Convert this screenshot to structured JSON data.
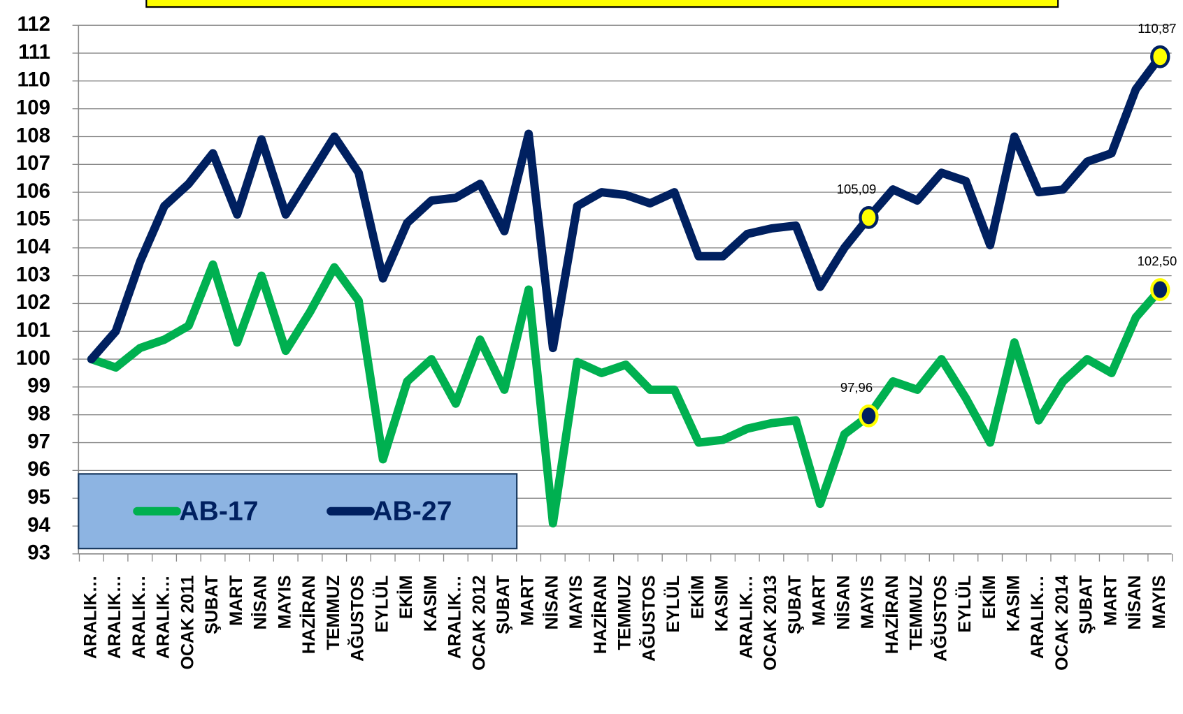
{
  "chart_data": {
    "type": "line",
    "categories": [
      "ARALIK…",
      "ARALIK…",
      "ARALIK…",
      "ARALIK…",
      "OCAK 2011",
      "ŞUBAT",
      "MART",
      "NİSAN",
      "MAYIS",
      "HAZİRAN",
      "TEMMUZ",
      "AĞUSTOS",
      "EYLÜL",
      "EKİM",
      "KASIM",
      "ARALIK…",
      "OCAK 2012",
      "ŞUBAT",
      "MART",
      "NİSAN",
      "MAYIS",
      "HAZİRAN",
      "TEMMUZ",
      "AĞUSTOS",
      "EYLÜL",
      "EKİM",
      "KASIM",
      "ARALIK…",
      "OCAK 2013",
      "ŞUBAT",
      "MART",
      "NİSAN",
      "MAYIS",
      "HAZİRAN",
      "TEMMUZ",
      "AĞUSTOS",
      "EYLÜL",
      "EKİM",
      "KASIM",
      "ARALIK…",
      "OCAK 2014",
      "ŞUBAT",
      "MART",
      "NİSAN",
      "MAYIS"
    ],
    "series": [
      {
        "name": "AB-17",
        "color": "#00b050",
        "marker_fill": "#002060",
        "marker_stroke": "#ffff00",
        "values": [
          100,
          99.7,
          100.4,
          100.7,
          101.2,
          103.4,
          100.6,
          103,
          100.3,
          101.7,
          103.3,
          102.1,
          96.4,
          99.2,
          100,
          98.4,
          100.7,
          98.9,
          102.5,
          94.1,
          99.9,
          99.5,
          99.8,
          98.9,
          98.9,
          97,
          97.1,
          97.5,
          97.7,
          97.8,
          94.8,
          97.3,
          97.96,
          99.2,
          98.9,
          100,
          98.6,
          97,
          100.6,
          97.8,
          99.2,
          100,
          99.5,
          101.5,
          102.5
        ],
        "value_labels": [
          null,
          null,
          null,
          null,
          null,
          null,
          null,
          null,
          null,
          null,
          null,
          null,
          null,
          null,
          null,
          null,
          null,
          null,
          null,
          null,
          null,
          null,
          null,
          null,
          null,
          null,
          null,
          null,
          null,
          null,
          null,
          null,
          "97,96",
          null,
          null,
          null,
          null,
          null,
          null,
          null,
          null,
          null,
          null,
          null,
          "102,50"
        ]
      },
      {
        "name": "AB-27",
        "color": "#002060",
        "marker_fill": "#ffff00",
        "marker_stroke": "#002060",
        "values": [
          100,
          101,
          103.5,
          105.5,
          106.3,
          107.4,
          105.2,
          107.9,
          105.2,
          106.6,
          108,
          106.7,
          102.9,
          104.9,
          105.7,
          105.8,
          106.3,
          104.6,
          108.1,
          100.4,
          105.5,
          106,
          105.9,
          105.6,
          106,
          103.7,
          103.7,
          104.5,
          104.7,
          104.8,
          102.6,
          104,
          105.09,
          106.1,
          105.7,
          106.7,
          106.4,
          104.1,
          108,
          106,
          106.1,
          107.1,
          107.4,
          109.7,
          110.87
        ],
        "value_labels": [
          null,
          null,
          null,
          null,
          null,
          null,
          null,
          null,
          null,
          null,
          null,
          null,
          null,
          null,
          null,
          null,
          null,
          null,
          null,
          null,
          null,
          null,
          null,
          null,
          null,
          null,
          null,
          null,
          null,
          null,
          null,
          null,
          "105,09",
          null,
          null,
          null,
          null,
          null,
          null,
          null,
          null,
          null,
          null,
          null,
          "110,87"
        ]
      }
    ],
    "ylim": [
      93,
      112
    ],
    "yticks": [
      93,
      94,
      95,
      96,
      97,
      98,
      99,
      100,
      101,
      102,
      103,
      104,
      105,
      106,
      107,
      108,
      109,
      110,
      111,
      112
    ],
    "grid": true,
    "legend": "bottom-left"
  }
}
